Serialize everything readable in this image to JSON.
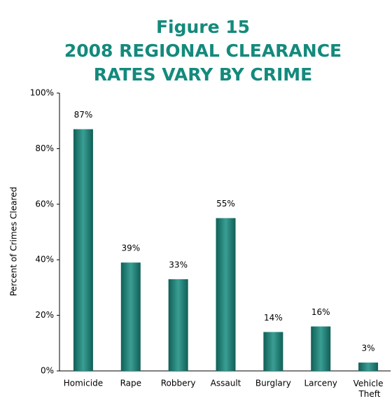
{
  "chart_data": {
    "type": "bar",
    "title": [
      "Figure 15",
      "2008 REGIONAL CLEARANCE",
      "RATES VARY BY CRIME"
    ],
    "y_label": "Percent of Crimes Cleared",
    "categories": [
      "Homicide",
      "Rape",
      "Robbery",
      "Assault",
      "Burglary",
      "Larceny",
      "Vehicle Theft"
    ],
    "values": [
      87,
      39,
      33,
      55,
      14,
      16,
      3
    ],
    "value_labels": [
      "87%",
      "39%",
      "33%",
      "55%",
      "14%",
      "16%",
      "3%"
    ],
    "color": "#0f5f57",
    "ylim": [
      0,
      100
    ],
    "yticks": [
      {
        "value": 0,
        "label": "0%"
      },
      {
        "value": 20,
        "label": "20%"
      },
      {
        "value": 40,
        "label": "40%"
      },
      {
        "value": 60,
        "label": "60%"
      },
      {
        "value": 80,
        "label": "80%"
      },
      {
        "value": 100,
        "label": "100%"
      }
    ],
    "grid": false
  }
}
